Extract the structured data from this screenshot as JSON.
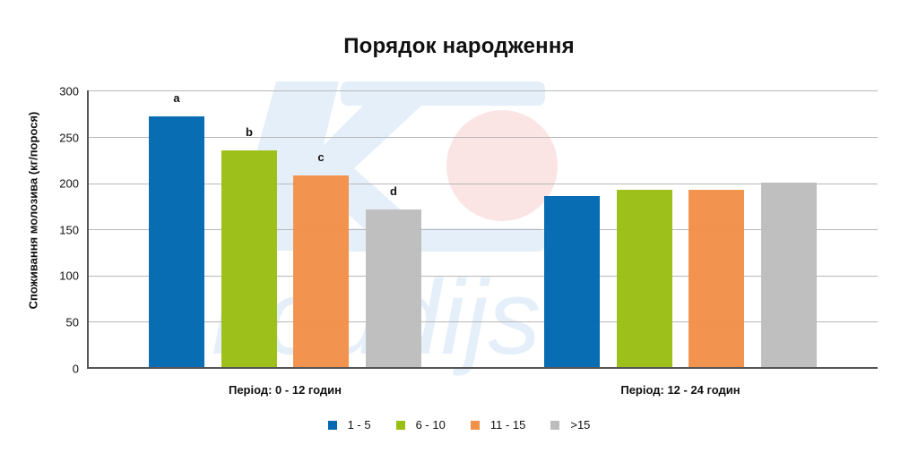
{
  "chart_data": {
    "type": "bar",
    "title": "Порядок народження",
    "xlabel": "",
    "ylabel": "Споживання молозива (кг/порося)",
    "ylim": [
      0,
      300
    ],
    "yticks": [
      0,
      50,
      100,
      150,
      200,
      250,
      300
    ],
    "grid": true,
    "legend_position": "bottom",
    "categories": [
      "Період: 0 - 12 годин",
      "Період: 12 - 24 годин"
    ],
    "series": [
      {
        "name": "1 - 5",
        "color": "#0068B0",
        "values": [
          272,
          186
        ]
      },
      {
        "name": "6 - 10",
        "color": "#9BBE13",
        "values": [
          235,
          193
        ]
      },
      {
        "name": "11 - 15",
        "color": "#F29149",
        "values": [
          208,
          193
        ]
      },
      {
        "name": ">15",
        "color": "#BDBDBD",
        "values": [
          171,
          200
        ]
      }
    ],
    "annotations": [
      {
        "category": "Період: 0 - 12 годин",
        "series": "1 - 5",
        "text": "a"
      },
      {
        "category": "Період: 0 - 12 годин",
        "series": "6 - 10",
        "text": "b"
      },
      {
        "category": "Період: 0 - 12 годин",
        "series": "11 - 15",
        "text": "c"
      },
      {
        "category": "Період: 0 - 12 годин",
        "series": ">15",
        "text": "d"
      }
    ]
  },
  "watermark": {
    "text": "koudijs",
    "k_color": "#E6F0FA",
    "circle_color": "#FBE3E3"
  }
}
